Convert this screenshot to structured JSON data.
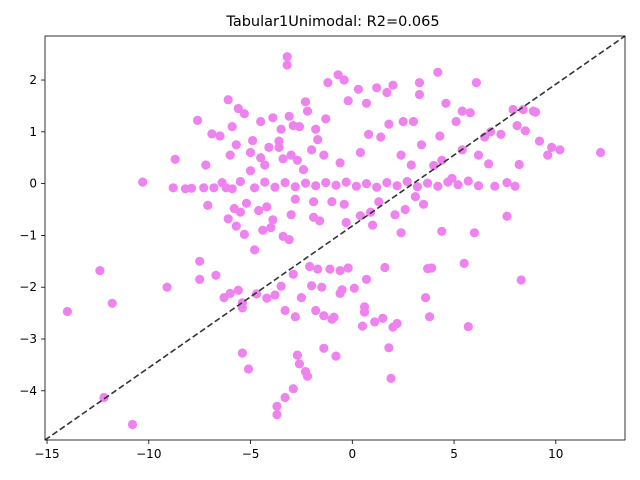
{
  "chart_data": {
    "type": "scatter",
    "title": "Tabular1Unimodal: R2=0.065",
    "xlabel": "",
    "ylabel": "",
    "xlim": [
      -15.1,
      13.4
    ],
    "ylim": [
      -4.95,
      2.85
    ],
    "xticks": [
      -15,
      -10,
      -5,
      0,
      5,
      10
    ],
    "yticks": [
      -4,
      -3,
      -2,
      -1,
      0,
      1,
      2
    ],
    "xtick_labels": [
      "−15",
      "−10",
      "−5",
      "0",
      "5",
      "10"
    ],
    "ytick_labels": [
      "−4",
      "−3",
      "−2",
      "−1",
      "0",
      "1",
      "2"
    ],
    "grid": false,
    "legend": "none",
    "point_color": "#ee82ee",
    "reference_line": {
      "style": "dashed",
      "color": "#333333",
      "from": [
        -15.1,
        -4.95
      ],
      "to": [
        13.4,
        2.85
      ]
    },
    "points": [
      [
        -14,
        -2.47
      ],
      [
        -12.4,
        -1.68
      ],
      [
        -12.2,
        -4.13
      ],
      [
        -11.8,
        -2.31
      ],
      [
        -10.8,
        -4.65
      ],
      [
        -10.3,
        0.03
      ],
      [
        -9.1,
        -2.0
      ],
      [
        -8.8,
        -0.08
      ],
      [
        -8.7,
        0.47
      ],
      [
        -8.2,
        -0.1
      ],
      [
        -7.9,
        -0.09
      ],
      [
        -7.6,
        1.22
      ],
      [
        -7.5,
        -1.5
      ],
      [
        -7.5,
        -1.85
      ],
      [
        -7.3,
        -0.08
      ],
      [
        -7.2,
        0.36
      ],
      [
        -7.1,
        -0.42
      ],
      [
        -6.9,
        0.96
      ],
      [
        -6.8,
        -0.08
      ],
      [
        -6.7,
        -1.77
      ],
      [
        -6.5,
        0.92
      ],
      [
        -6.4,
        0.02
      ],
      [
        -6.3,
        -2.2
      ],
      [
        -6.1,
        1.62
      ],
      [
        -6.1,
        -0.68
      ],
      [
        -6.0,
        0.55
      ],
      [
        -6.0,
        -2.12
      ],
      [
        -5.9,
        1.1
      ],
      [
        -5.9,
        -0.1
      ],
      [
        -5.8,
        -0.48
      ],
      [
        -5.7,
        0.75
      ],
      [
        -5.7,
        -0.82
      ],
      [
        -5.6,
        1.45
      ],
      [
        -5.6,
        -2.06
      ],
      [
        -5.5,
        0.04
      ],
      [
        -5.5,
        -0.55
      ],
      [
        -5.4,
        -2.3
      ],
      [
        -5.4,
        -2.4
      ],
      [
        -5.4,
        -3.27
      ],
      [
        -5.3,
        1.35
      ],
      [
        -5.3,
        -0.98
      ],
      [
        -5.2,
        -0.38
      ],
      [
        -5.1,
        -3.58
      ],
      [
        -5.0,
        0.25
      ],
      [
        -4.9,
        0.83
      ],
      [
        -4.8,
        -1.28
      ],
      [
        -4.7,
        -2.13
      ],
      [
        -4.6,
        -0.52
      ],
      [
        -4.5,
        1.2
      ],
      [
        -4.4,
        -0.9
      ],
      [
        -4.3,
        0.36
      ],
      [
        -4.2,
        -2.21
      ],
      [
        -4.1,
        0.7
      ],
      [
        -4.0,
        -0.85
      ],
      [
        -3.9,
        -0.7
      ],
      [
        -3.9,
        1.27
      ],
      [
        -3.8,
        -2.15
      ],
      [
        -3.7,
        -4.46
      ],
      [
        -3.7,
        -4.3
      ],
      [
        -3.6,
        0.82
      ],
      [
        -3.5,
        1.05
      ],
      [
        -3.5,
        -1.98
      ],
      [
        -3.4,
        -1.02
      ],
      [
        -3.4,
        0.48
      ],
      [
        -3.3,
        -2.45
      ],
      [
        -3.3,
        -4.13
      ],
      [
        -3.2,
        2.45
      ],
      [
        -3.2,
        2.29
      ],
      [
        -3.1,
        1.3
      ],
      [
        -3.1,
        -1.08
      ],
      [
        -3.0,
        0.55
      ],
      [
        -2.9,
        -1.75
      ],
      [
        -2.9,
        -3.96
      ],
      [
        -2.8,
        -0.3
      ],
      [
        -2.8,
        -2.57
      ],
      [
        -2.7,
        -3.31
      ],
      [
        -2.6,
        1.1
      ],
      [
        -2.6,
        -3.48
      ],
      [
        -2.5,
        -2.2
      ],
      [
        -2.4,
        0.27
      ],
      [
        -2.3,
        -3.63
      ],
      [
        -2.3,
        1.58
      ],
      [
        -2.2,
        -3.72
      ],
      [
        -2.2,
        1.4
      ],
      [
        -2.1,
        -1.6
      ],
      [
        -2.0,
        -1.97
      ],
      [
        -2.0,
        0.65
      ],
      [
        -1.9,
        -0.65
      ],
      [
        -1.8,
        -2.45
      ],
      [
        -1.8,
        1.05
      ],
      [
        -1.7,
        -1.65
      ],
      [
        -1.6,
        -0.72
      ],
      [
        -1.5,
        -2.0
      ],
      [
        -1.4,
        -2.55
      ],
      [
        -1.4,
        -3.18
      ],
      [
        -1.3,
        1.25
      ],
      [
        -1.2,
        1.95
      ],
      [
        -1.1,
        -1.65
      ],
      [
        -1.0,
        -0.35
      ],
      [
        -1.0,
        -2.62
      ],
      [
        -0.9,
        -2.58
      ],
      [
        -0.8,
        -3.33
      ],
      [
        -0.7,
        2.1
      ],
      [
        -0.6,
        -1.68
      ],
      [
        -0.6,
        -2.12
      ],
      [
        -0.5,
        -2.05
      ],
      [
        -0.4,
        2.0
      ],
      [
        -0.3,
        -0.75
      ],
      [
        -0.2,
        -1.63
      ],
      [
        -0.2,
        1.6
      ],
      [
        0.1,
        -2.02
      ],
      [
        0.3,
        1.82
      ],
      [
        0.4,
        -0.62
      ],
      [
        0.5,
        -2.75
      ],
      [
        0.6,
        -2.38
      ],
      [
        0.6,
        -2.48
      ],
      [
        0.7,
        -1.85
      ],
      [
        0.7,
        1.55
      ],
      [
        0.9,
        -0.55
      ],
      [
        1.1,
        -2.67
      ],
      [
        1.2,
        1.85
      ],
      [
        1.3,
        -0.35
      ],
      [
        1.5,
        -2.6
      ],
      [
        1.6,
        -1.62
      ],
      [
        1.7,
        1.76
      ],
      [
        1.8,
        -3.17
      ],
      [
        1.9,
        -3.76
      ],
      [
        2.0,
        1.9
      ],
      [
        2.0,
        -2.77
      ],
      [
        2.2,
        -2.7
      ],
      [
        2.4,
        -0.95
      ],
      [
        2.5,
        1.2
      ],
      [
        2.6,
        -0.5
      ],
      [
        2.9,
        0.36
      ],
      [
        3.1,
        -0.25
      ],
      [
        3.3,
        1.95
      ],
      [
        3.3,
        1.72
      ],
      [
        3.5,
        -0.4
      ],
      [
        3.6,
        -2.2
      ],
      [
        3.7,
        -1.64
      ],
      [
        3.8,
        -2.57
      ],
      [
        3.9,
        -1.63
      ],
      [
        4.2,
        2.15
      ],
      [
        4.3,
        0.92
      ],
      [
        4.4,
        -0.92
      ],
      [
        4.6,
        1.55
      ],
      [
        4.9,
        0.1
      ],
      [
        5.1,
        1.2
      ],
      [
        5.4,
        1.4
      ],
      [
        5.5,
        -1.54
      ],
      [
        5.7,
        -2.76
      ],
      [
        5.8,
        1.37
      ],
      [
        6.0,
        -0.95
      ],
      [
        6.1,
        1.95
      ],
      [
        6.5,
        0.9
      ],
      [
        6.7,
        0.38
      ],
      [
        6.8,
        1.0
      ],
      [
        7.0,
        -0.05
      ],
      [
        7.3,
        0.95
      ],
      [
        7.6,
        -0.63
      ],
      [
        7.9,
        1.43
      ],
      [
        8.1,
        1.12
      ],
      [
        8.2,
        0.37
      ],
      [
        8.3,
        -1.86
      ],
      [
        8.4,
        1.43
      ],
      [
        8.5,
        1.02
      ],
      [
        8.9,
        1.4
      ],
      [
        9.0,
        1.38
      ],
      [
        9.2,
        0.82
      ],
      [
        9.6,
        0.55
      ],
      [
        9.8,
        0.7
      ],
      [
        10.2,
        0.65
      ],
      [
        12.2,
        0.6
      ],
      [
        -4.8,
        -0.08
      ],
      [
        -4.3,
        0.03
      ],
      [
        -3.8,
        -0.07
      ],
      [
        -3.3,
        0.02
      ],
      [
        -2.8,
        -0.06
      ],
      [
        -2.3,
        0.01
      ],
      [
        -1.8,
        -0.04
      ],
      [
        -1.3,
        0.02
      ],
      [
        -0.8,
        -0.03
      ],
      [
        -0.3,
        0.03
      ],
      [
        0.2,
        -0.05
      ],
      [
        0.7,
        0.0
      ],
      [
        1.2,
        -0.07
      ],
      [
        1.7,
        0.02
      ],
      [
        2.2,
        -0.04
      ],
      [
        2.7,
        0.04
      ],
      [
        3.2,
        -0.06
      ],
      [
        3.7,
        0.01
      ],
      [
        4.2,
        -0.05
      ],
      [
        4.7,
        0.03
      ],
      [
        5.2,
        -0.02
      ],
      [
        5.7,
        0.05
      ],
      [
        6.2,
        -0.04
      ],
      [
        7.6,
        0.02
      ],
      [
        8.0,
        -0.05
      ],
      [
        -4.5,
        0.5
      ],
      [
        -3.6,
        0.7
      ],
      [
        -2.7,
        0.45
      ],
      [
        -1.7,
        0.85
      ],
      [
        -0.6,
        0.4
      ],
      [
        0.4,
        0.6
      ],
      [
        1.4,
        0.9
      ],
      [
        2.4,
        0.55
      ],
      [
        3.4,
        0.75
      ],
      [
        4.4,
        0.45
      ],
      [
        5.4,
        0.65
      ],
      [
        -4.2,
        -0.45
      ],
      [
        -3.0,
        -0.6
      ],
      [
        -1.9,
        -0.35
      ],
      [
        -0.4,
        -0.4
      ],
      [
        1.0,
        -0.8
      ],
      [
        2.1,
        -0.6
      ],
      [
        3.0,
        1.2
      ],
      [
        -2.9,
        1.12
      ],
      [
        1.8,
        1.15
      ],
      [
        -1.4,
        0.55
      ],
      [
        0.8,
        0.95
      ],
      [
        4.0,
        0.35
      ],
      [
        -5.0,
        0.6
      ],
      [
        6.2,
        0.55
      ],
      [
        -6.2,
        -0.08
      ]
    ]
  }
}
